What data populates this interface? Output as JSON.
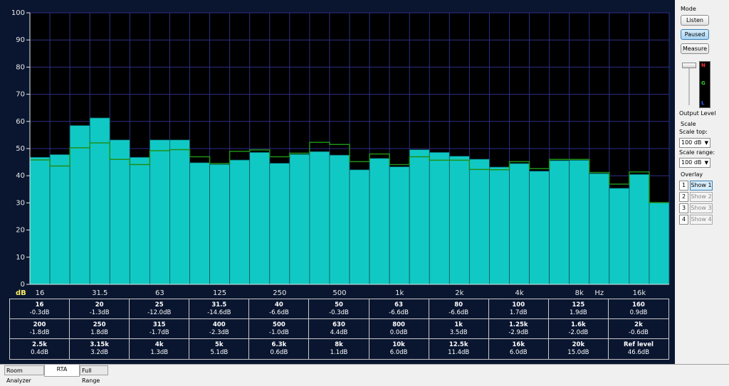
{
  "chart_data": {
    "type": "bar",
    "ylim": [
      0,
      100
    ],
    "yticks": [
      "100",
      "90",
      "80",
      "70",
      "60",
      "50",
      "40",
      "30",
      "20",
      "10",
      "0"
    ],
    "y_unit": "dB",
    "x_unit": "Hz",
    "x_tick_labels": [
      "16",
      "31.5",
      "63",
      "125",
      "250",
      "500",
      "1k",
      "2k",
      "4k",
      "8k",
      "16k"
    ],
    "band_count": 32,
    "series": [
      {
        "values": [
          46.8,
          47.8,
          58.5,
          61.3,
          53.2,
          46.8,
          53.2,
          53.2,
          44.8,
          44.2,
          45.8,
          48.6,
          44.6,
          47.9,
          48.9,
          47.6,
          42.2,
          46.4,
          43.3,
          49.6,
          48.6,
          47.2,
          46.1,
          43.2,
          44.5,
          41.7,
          45.6,
          45.7,
          40.8,
          35.4,
          40.5,
          30.1
        ]
      },
      {
        "values": [
          45.8,
          43.6,
          50.3,
          52.1,
          46.0,
          44.1,
          49.2,
          49.6,
          47.0,
          44.5,
          49.0,
          49.5,
          47.0,
          48.3,
          52.3,
          51.5,
          45.2,
          48.0,
          44.1,
          47.0,
          45.7,
          45.7,
          42.3,
          42.2,
          45.2,
          42.6,
          46.0,
          46.0,
          41.2,
          36.9,
          41.4,
          30.1
        ]
      }
    ]
  },
  "colors": {
    "bar": "#11c9c4",
    "bar_edge": "#05525a",
    "overlay": "#1f8f18",
    "background": "#000000",
    "grid": "#2e2e88"
  },
  "table": [
    {
      "f": "16",
      "v": "-0.3dB"
    },
    {
      "f": "20",
      "v": "-1.3dB"
    },
    {
      "f": "25",
      "v": "-12.0dB"
    },
    {
      "f": "31.5",
      "v": "-14.6dB"
    },
    {
      "f": "40",
      "v": "-6.6dB"
    },
    {
      "f": "50",
      "v": "-0.3dB"
    },
    {
      "f": "63",
      "v": "-6.6dB"
    },
    {
      "f": "80",
      "v": "-6.6dB"
    },
    {
      "f": "100",
      "v": "1.7dB"
    },
    {
      "f": "125",
      "v": "1.9dB"
    },
    {
      "f": "160",
      "v": "0.9dB"
    },
    {
      "f": "200",
      "v": "-1.8dB"
    },
    {
      "f": "250",
      "v": "1.8dB"
    },
    {
      "f": "315",
      "v": "-1.7dB"
    },
    {
      "f": "400",
      "v": "-2.3dB"
    },
    {
      "f": "500",
      "v": "-1.0dB"
    },
    {
      "f": "630",
      "v": "4.4dB"
    },
    {
      "f": "800",
      "v": "0.0dB"
    },
    {
      "f": "1k",
      "v": "3.5dB"
    },
    {
      "f": "1.25k",
      "v": "-2.9dB"
    },
    {
      "f": "1.6k",
      "v": "-2.0dB"
    },
    {
      "f": "2k",
      "v": "-0.6dB"
    },
    {
      "f": "2.5k",
      "v": "0.4dB"
    },
    {
      "f": "3.15k",
      "v": "3.2dB"
    },
    {
      "f": "4k",
      "v": "1.3dB"
    },
    {
      "f": "5k",
      "v": "5.1dB"
    },
    {
      "f": "6.3k",
      "v": "0.6dB"
    },
    {
      "f": "8k",
      "v": "1.1dB"
    },
    {
      "f": "10k",
      "v": "6.0dB"
    },
    {
      "f": "12.5k",
      "v": "11.4dB"
    },
    {
      "f": "16k",
      "v": "6.0dB"
    },
    {
      "f": "20k",
      "v": "15.0dB"
    },
    {
      "f": "Ref level",
      "v": "46.6dB"
    }
  ],
  "panel": {
    "mode_label": "Mode",
    "listen": "Listen",
    "paused": "Paused",
    "measure": "Measure",
    "meter_letters": {
      "n": "N",
      "g": "G",
      "l": "L"
    },
    "output_level": "Output Level",
    "scale_label": "Scale",
    "scale_top_label": "Scale top:",
    "scale_top_value": "100 dB",
    "scale_range_label": "Scale range:",
    "scale_range_value": "100 dB",
    "overlay_label": "Overlay",
    "overlays": [
      {
        "num": "1",
        "label": "Show 1"
      },
      {
        "num": "2",
        "label": "Show 2"
      },
      {
        "num": "3",
        "label": "Show 3"
      },
      {
        "num": "4",
        "label": "Show 4"
      }
    ]
  },
  "tabs": [
    "Room Analyzer",
    "RTA",
    "Full Range"
  ]
}
